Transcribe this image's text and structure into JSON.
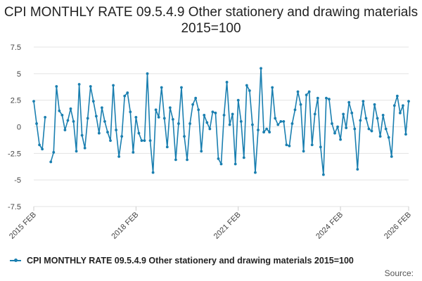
{
  "chart_data": {
    "type": "line",
    "title": "CPI MONTHLY RATE 09.5.4.9 Other stationery and drawing materials 2015=100",
    "xlabel": "",
    "ylabel": "",
    "ylim": [
      -7.5,
      7.5
    ],
    "yticks": [
      "7.5",
      "5",
      "2.5",
      "0",
      "-2.5",
      "-5",
      "-7.5"
    ],
    "ytick_values": [
      7.5,
      5,
      2.5,
      0,
      -2.5,
      -5,
      -7.5
    ],
    "xticks": [
      "2015 FEB",
      "2018 FEB",
      "2021 FEB",
      "2024 FEB",
      "2026 FEB"
    ],
    "grid": true,
    "legend_position": "bottom-left",
    "series": [
      {
        "name": "CPI MONTHLY RATE 09.5.4.9 Other stationery and drawing materials 2015=100",
        "color": "#1a7fb0",
        "values": [
          2.4,
          0.3,
          -1.7,
          -2.1,
          0.9,
          null,
          -3.3,
          -2.4,
          3.8,
          1.5,
          1.1,
          -0.3,
          0.6,
          1.7,
          0.5,
          -2.3,
          4.0,
          -0.8,
          -2.0,
          0.8,
          3.8,
          2.4,
          1.0,
          -0.6,
          1.8,
          0.5,
          -0.5,
          -1.3,
          3.9,
          -0.3,
          -2.8,
          -0.9,
          2.9,
          3.2,
          1.4,
          -2.4,
          0.9,
          -0.6,
          -1.3,
          -1.3,
          5.0,
          -1.3,
          -4.3,
          1.6,
          0.9,
          3.7,
          0.8,
          -1.9,
          1.8,
          0.7,
          -3.1,
          0.3,
          3.7,
          -0.9,
          -3.1,
          0.3,
          2.1,
          2.7,
          1.6,
          -2.3,
          1.1,
          0.4,
          -0.2,
          1.4,
          1.3,
          -3.0,
          -3.5,
          1.1,
          4.2,
          0.2,
          1.2,
          -3.5,
          2.5,
          0.5,
          -2.9,
          3.9,
          3.4,
          0.2,
          -4.3,
          -0.3,
          5.5,
          -0.5,
          -0.2,
          -0.5,
          3.7,
          0.8,
          0.2,
          0.5,
          0.5,
          -1.7,
          -1.8,
          0.3,
          1.6,
          3.3,
          2.1,
          -2.3,
          3.0,
          3.3,
          -1.7,
          1.2,
          2.7,
          -1.9,
          -4.5,
          2.7,
          2.6,
          0.3,
          -0.6,
          0.0,
          -1.2,
          1.2,
          -0.1,
          2.3,
          1.3,
          -0.2,
          -4.0,
          0.6,
          2.4,
          0.8,
          -0.2,
          -0.4,
          2.1,
          0.8,
          -0.9,
          1.1,
          -0.2,
          -1.0,
          -2.8,
          2.0,
          2.9,
          1.3,
          2.0,
          -0.7,
          2.4
        ]
      }
    ],
    "source_label": "Source:"
  }
}
